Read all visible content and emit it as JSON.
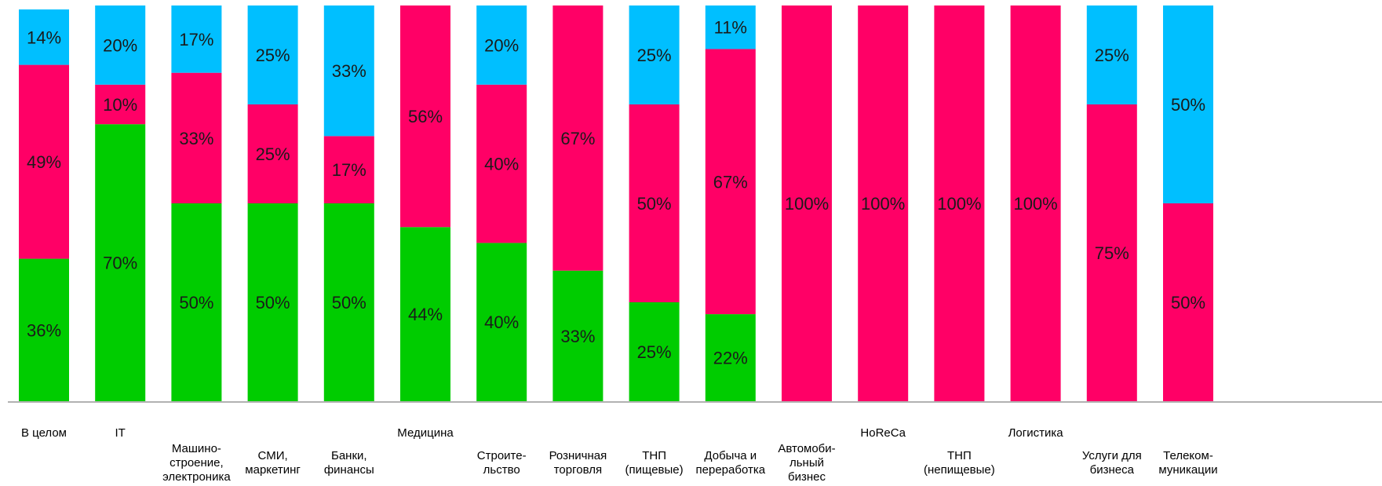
{
  "chart_data": {
    "type": "bar",
    "stacked": true,
    "normalized": true,
    "grid": false,
    "legend": "none",
    "ylim": [
      0,
      100
    ],
    "categories": [
      [
        "В целом"
      ],
      [
        "IT"
      ],
      [
        "Машино-",
        "строение,",
        "электроника"
      ],
      [
        "СМИ,",
        "маркетинг"
      ],
      [
        "Банки,",
        "финансы"
      ],
      [
        "Медицина"
      ],
      [
        "Строите-",
        "льство"
      ],
      [
        "Розничная",
        "торговля"
      ],
      [
        "ТНП",
        "(пищевые)"
      ],
      [
        "Добыча и",
        "переработка"
      ],
      [
        "Автомоби-",
        "льный",
        "бизнес"
      ],
      [
        "HoReCa"
      ],
      [
        "ТНП",
        "(непищевые)"
      ],
      [
        "Логистика"
      ],
      [
        "Услуги для",
        "бизнеса"
      ],
      [
        "Телеком-",
        "муникации"
      ]
    ],
    "series": [
      {
        "color": "#00cc00",
        "values": [
          36,
          70,
          50,
          50,
          50,
          44,
          40,
          33,
          25,
          22,
          0,
          0,
          0,
          0,
          0,
          0
        ]
      },
      {
        "color": "#ff0066",
        "values": [
          49,
          10,
          33,
          25,
          17,
          56,
          40,
          67,
          50,
          67,
          100,
          100,
          100,
          100,
          75,
          50
        ]
      },
      {
        "color": "#00bfff",
        "values": [
          14,
          20,
          17,
          25,
          33,
          0,
          20,
          0,
          25,
          11,
          0,
          0,
          0,
          0,
          25,
          50
        ]
      }
    ]
  }
}
